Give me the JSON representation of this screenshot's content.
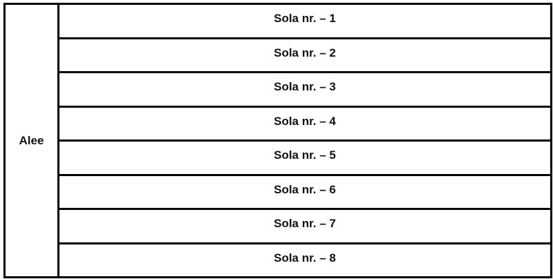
{
  "left_label": "Alee",
  "rows": [
    "Sola nr. – 1",
    "Sola nr. – 2",
    "Sola nr. – 3",
    "Sola nr. – 4",
    "Sola nr. – 5",
    "Sola nr. – 6",
    "Sola nr. – 7",
    "Sola nr. – 8"
  ]
}
